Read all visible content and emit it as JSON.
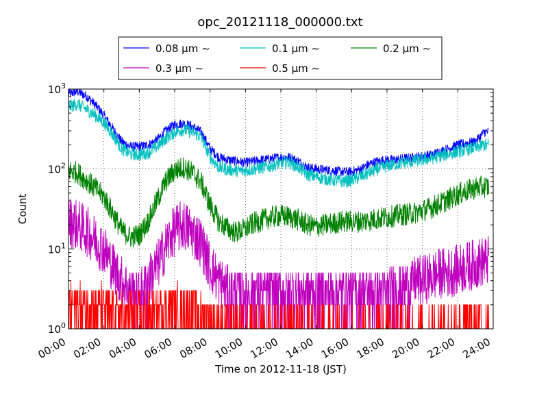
{
  "chart_data": {
    "type": "line",
    "title": "opc_20121118_000000.txt",
    "xlabel": "Time on 2012-11-18 (JST)",
    "ylabel": "Count",
    "xscale": "time",
    "yscale": "log",
    "xlim": [
      "2012-11-18 00:00",
      "2012-11-19 00:00"
    ],
    "ylim": [
      1,
      1000
    ],
    "grid": true,
    "legend_position": "top-center",
    "x_tick_labels": [
      "00:00",
      "02:00",
      "04:00",
      "06:00",
      "08:00",
      "10:00",
      "12:00",
      "14:00",
      "16:00",
      "18:00",
      "20:00",
      "22:00",
      "24:00"
    ],
    "y_tick_labels": [
      {
        "value": 1,
        "base": "10",
        "exp": "0"
      },
      {
        "value": 10,
        "base": "10",
        "exp": "1"
      },
      {
        "value": 100,
        "base": "10",
        "exp": "2"
      },
      {
        "value": 1000,
        "base": "10",
        "exp": "3"
      }
    ],
    "x": [
      "00:00",
      "00:30",
      "01:00",
      "01:30",
      "02:00",
      "02:30",
      "03:00",
      "03:30",
      "04:00",
      "04:30",
      "05:00",
      "05:30",
      "06:00",
      "06:30",
      "07:00",
      "07:30",
      "08:00",
      "08:30",
      "09:00",
      "09:30",
      "10:00",
      "10:30",
      "11:00",
      "11:30",
      "12:00",
      "12:30",
      "13:00",
      "13:30",
      "14:00",
      "14:30",
      "15:00",
      "15:30",
      "16:00",
      "16:30",
      "17:00",
      "17:30",
      "18:00",
      "18:30",
      "19:00",
      "19:30",
      "20:00",
      "20:30",
      "21:00",
      "21:30",
      "22:00",
      "22:30",
      "23:00",
      "23:30"
    ],
    "series": [
      {
        "name": "0.08 µm ~",
        "legend_label": "0.08 μm ∼",
        "color": "#0000ff",
        "noise": 0.06,
        "values": [
          870,
          930,
          820,
          640,
          470,
          320,
          220,
          190,
          190,
          200,
          230,
          300,
          360,
          370,
          340,
          290,
          180,
          140,
          130,
          125,
          120,
          125,
          130,
          135,
          140,
          140,
          125,
          105,
          100,
          98,
          95,
          92,
          92,
          100,
          115,
          125,
          130,
          130,
          135,
          140,
          145,
          150,
          165,
          180,
          200,
          210,
          220,
          290
        ]
      },
      {
        "name": "0.1 µm ~",
        "legend_label": "0.1 μm ∼",
        "color": "#00bfbf",
        "noise": 0.08,
        "values": [
          600,
          650,
          560,
          470,
          380,
          270,
          180,
          155,
          150,
          160,
          190,
          240,
          290,
          310,
          290,
          250,
          140,
          105,
          98,
          95,
          95,
          100,
          105,
          110,
          118,
          120,
          105,
          85,
          80,
          75,
          72,
          70,
          72,
          80,
          90,
          100,
          110,
          115,
          120,
          125,
          130,
          135,
          145,
          155,
          165,
          175,
          185,
          200
        ]
      },
      {
        "name": "0.2 µm ~",
        "legend_label": "0.2 μm ∼",
        "color": "#008000",
        "noise": 0.14,
        "values": [
          95,
          90,
          72,
          58,
          45,
          28,
          17,
          14,
          15,
          22,
          40,
          70,
          95,
          105,
          90,
          68,
          35,
          22,
          18,
          16,
          18,
          21,
          23,
          25,
          26,
          25,
          23,
          20,
          19,
          20,
          21,
          22,
          22,
          22,
          23,
          24,
          25,
          26,
          27,
          28,
          30,
          33,
          37,
          42,
          48,
          53,
          58,
          60
        ]
      },
      {
        "name": "0.3 µm ~",
        "legend_label": "0.3 μm ∼",
        "color": "#bf00bf",
        "noise": 0.32,
        "values": [
          22,
          20,
          17,
          13,
          10,
          6,
          4,
          3,
          3,
          4,
          6,
          11,
          17,
          20,
          16,
          12,
          6,
          4,
          3,
          3,
          3,
          3,
          3,
          3,
          3,
          3,
          3,
          3,
          3,
          3,
          3,
          3,
          3,
          3,
          3,
          3,
          3,
          3.5,
          3.5,
          4,
          4,
          4.5,
          5,
          5,
          5.5,
          6,
          6.5,
          7
        ]
      },
      {
        "name": "0.5 µm ~",
        "legend_label": "0.5 μm ∼",
        "color": "#ff0000",
        "noise": 0.5,
        "values": [
          2,
          2,
          2,
          2,
          2,
          1.5,
          1.5,
          1.5,
          1.5,
          1.5,
          1.5,
          2,
          2,
          2,
          2,
          1.5,
          1.5,
          1,
          1,
          1,
          1,
          1,
          1,
          1,
          1,
          1,
          1,
          1,
          1,
          1,
          1,
          1,
          1,
          1,
          1,
          1,
          1,
          1,
          1,
          1,
          1,
          1,
          1,
          1,
          1.2,
          1.2,
          1.2,
          1.2
        ]
      }
    ]
  }
}
